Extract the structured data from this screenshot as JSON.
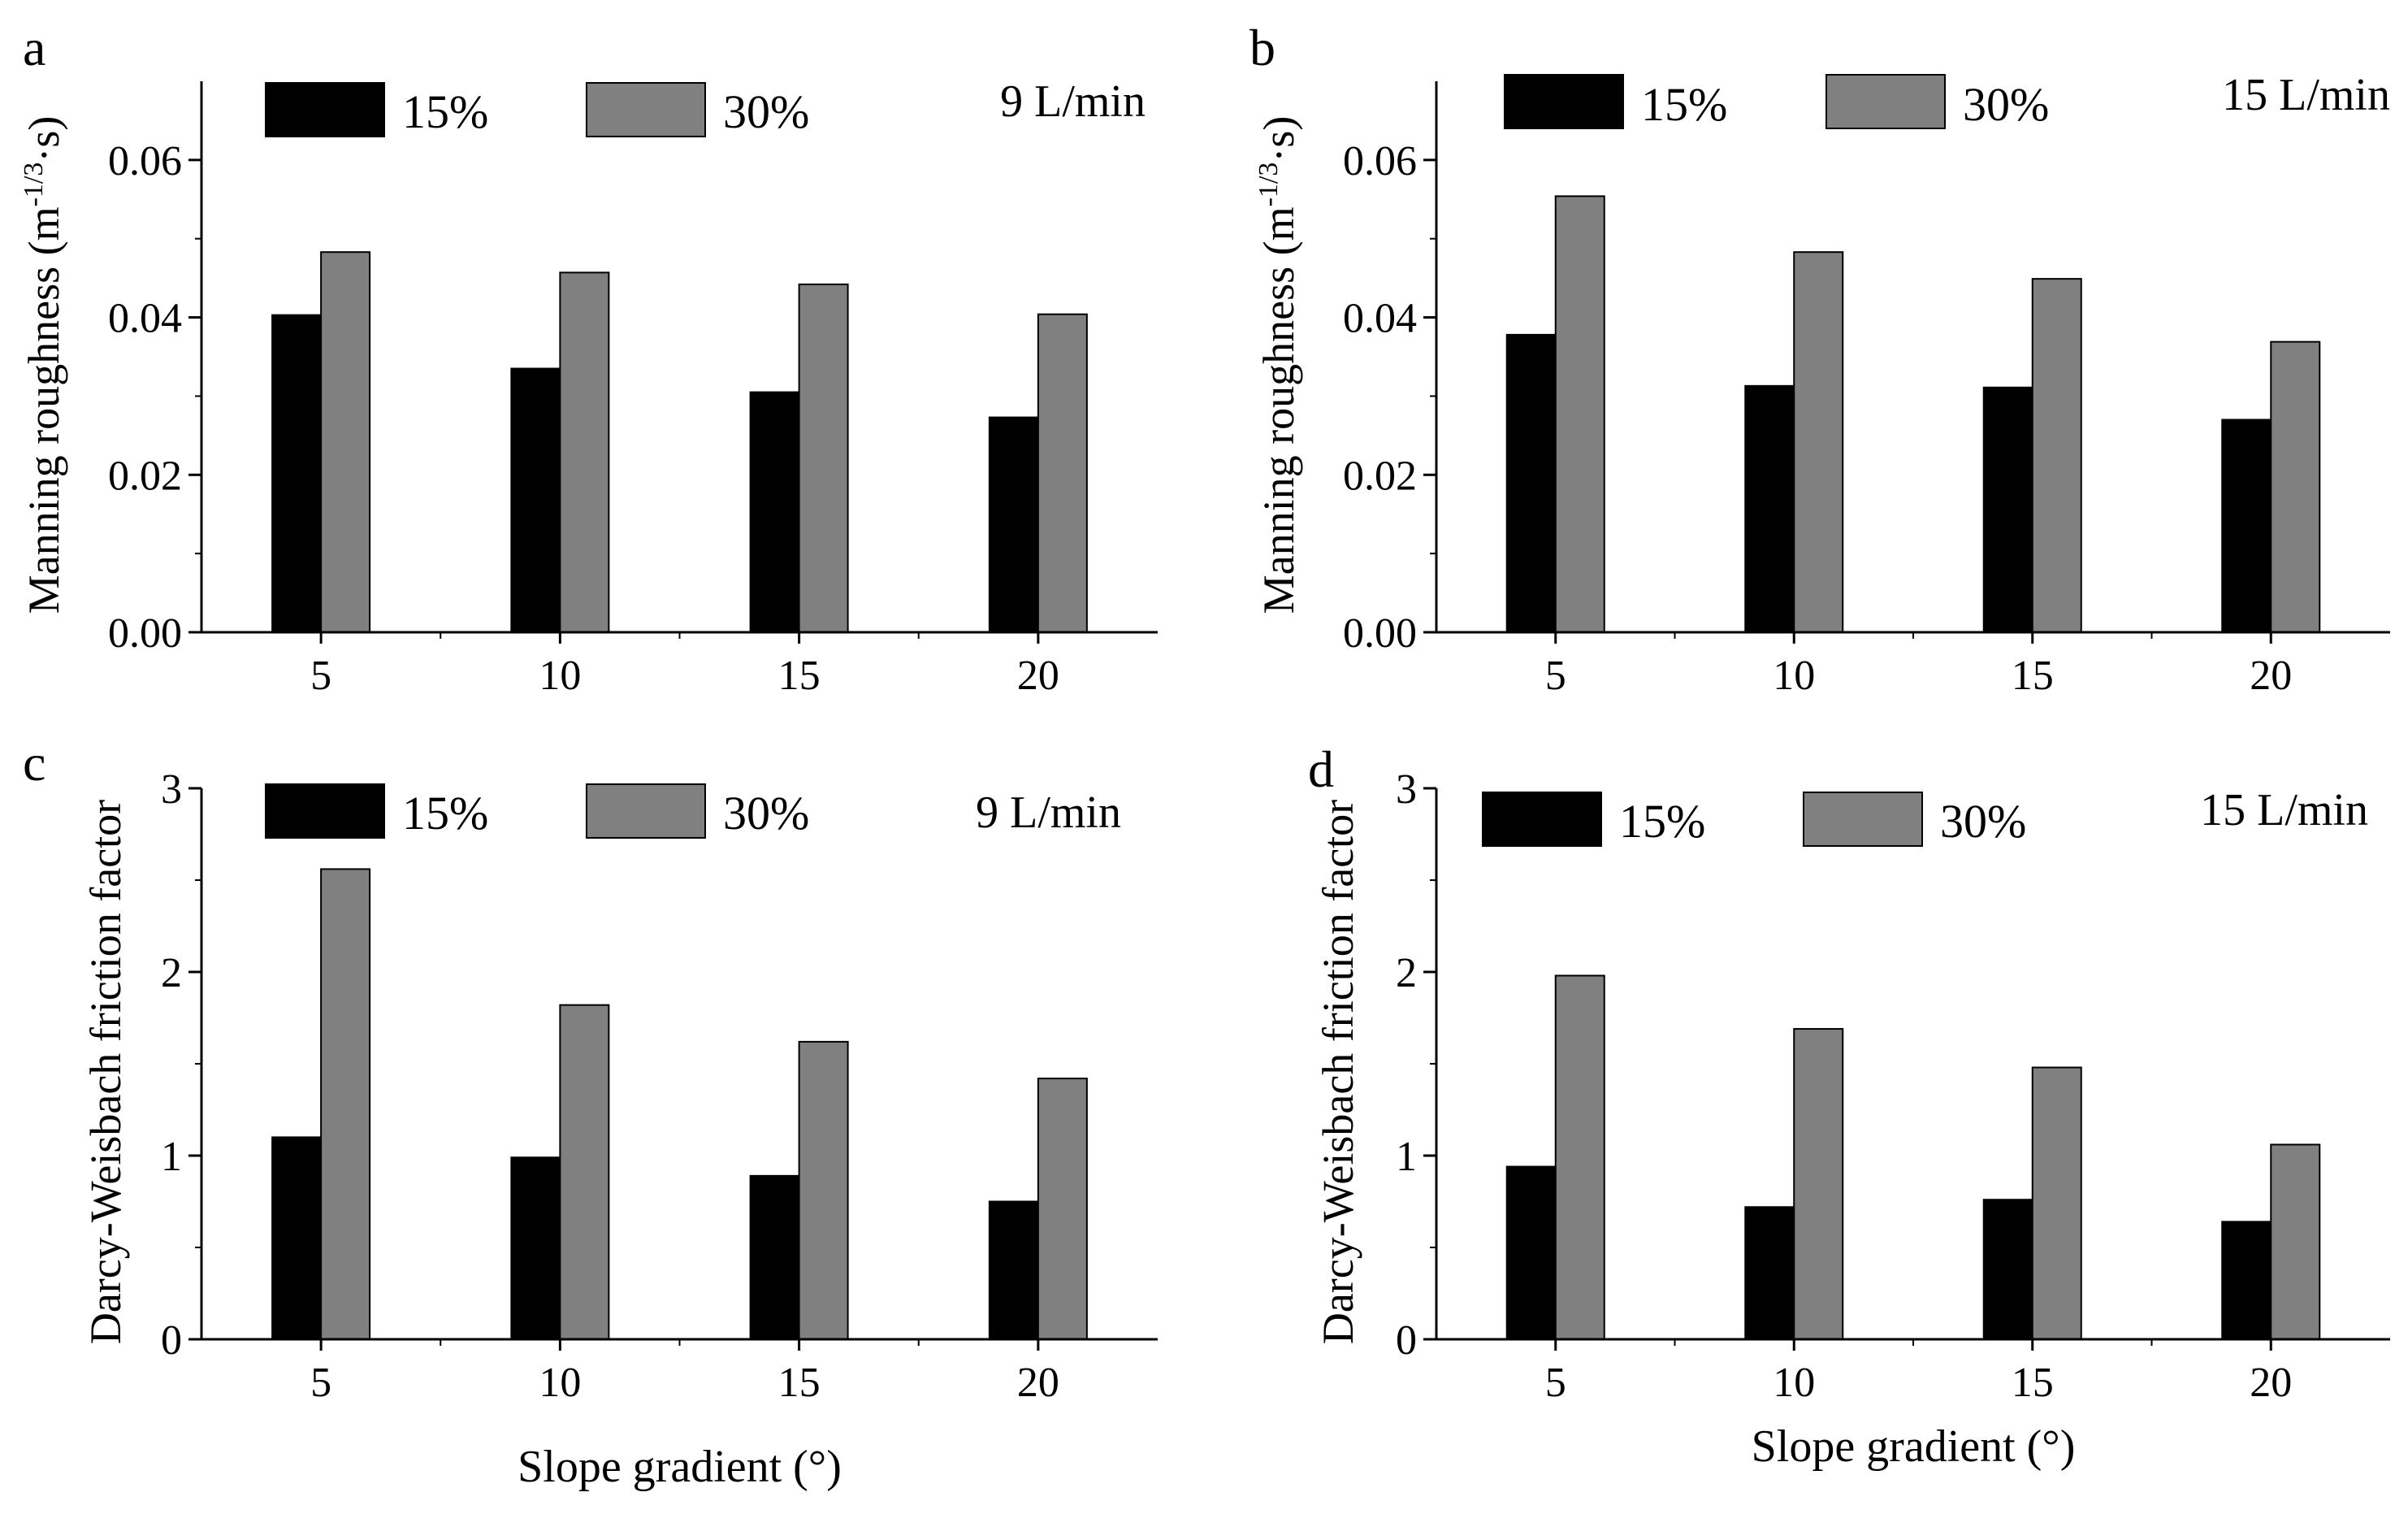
{
  "figure": {
    "colors": {
      "s15": "#000000",
      "s30": "#808080",
      "axis": "#000000"
    },
    "xlabel_bottom": "Slope gradient (°)"
  },
  "chart_data": [
    {
      "type": "bar",
      "panel": "a",
      "flow": "9 L/min",
      "categories": [
        "5",
        "10",
        "15",
        "20"
      ],
      "series": [
        {
          "name": "15%",
          "values": [
            0.0403,
            0.0335,
            0.0305,
            0.0273
          ]
        },
        {
          "name": "30%",
          "values": [
            0.0483,
            0.0457,
            0.0442,
            0.0404
          ]
        }
      ],
      "ylabel": "Manning roughness (m",
      "ylabel_sup": "-1/3",
      "ylabel_tail": "·s)",
      "ylim": [
        0,
        0.07
      ],
      "yticks": [
        "0.00",
        "0.02",
        "0.04",
        "0.06"
      ],
      "ytick_values": [
        0,
        0.02,
        0.04,
        0.06
      ],
      "legend": "top"
    },
    {
      "type": "bar",
      "panel": "b",
      "flow": "15 L/min",
      "categories": [
        "5",
        "10",
        "15",
        "20"
      ],
      "series": [
        {
          "name": "15%",
          "values": [
            0.0378,
            0.0313,
            0.0311,
            0.027
          ]
        },
        {
          "name": "30%",
          "values": [
            0.0554,
            0.0483,
            0.0449,
            0.0369
          ]
        }
      ],
      "ylabel": "Manning roughness (m",
      "ylabel_sup": "-1/3",
      "ylabel_tail": "·s)",
      "ylim": [
        0,
        0.07
      ],
      "yticks": [
        "0.00",
        "0.02",
        "0.04",
        "0.06"
      ],
      "ytick_values": [
        0,
        0.02,
        0.04,
        0.06
      ],
      "legend": "top"
    },
    {
      "type": "bar",
      "panel": "c",
      "flow": "9 L/min",
      "categories": [
        "5",
        "10",
        "15",
        "20"
      ],
      "series": [
        {
          "name": "15%",
          "values": [
            1.1,
            0.99,
            0.89,
            0.75
          ]
        },
        {
          "name": "30%",
          "values": [
            2.56,
            1.82,
            1.62,
            1.42
          ]
        }
      ],
      "ylabel": "Darcy-Weisbach friction factor",
      "ylim": [
        0,
        3
      ],
      "yticks": [
        "0",
        "1",
        "2",
        "3"
      ],
      "ytick_values": [
        0,
        1,
        2,
        3
      ],
      "legend": "top"
    },
    {
      "type": "bar",
      "panel": "d",
      "flow": "15 L/min",
      "categories": [
        "5",
        "10",
        "15",
        "20"
      ],
      "series": [
        {
          "name": "15%",
          "values": [
            0.94,
            0.72,
            0.76,
            0.64
          ]
        },
        {
          "name": "30%",
          "values": [
            1.98,
            1.69,
            1.48,
            1.06
          ]
        }
      ],
      "ylabel": "Darcy-Weisbach friction factor",
      "ylim": [
        0,
        3
      ],
      "yticks": [
        "0",
        "1",
        "2",
        "3"
      ],
      "ytick_values": [
        0,
        1,
        2,
        3
      ],
      "legend": "top"
    }
  ]
}
